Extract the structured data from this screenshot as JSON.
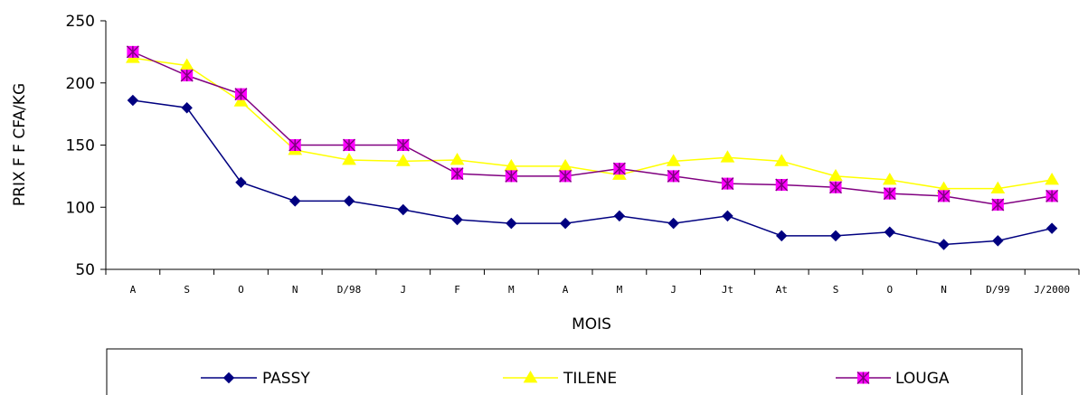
{
  "chart_data": {
    "type": "line",
    "xlabel": "MOIS",
    "ylabel": "PRIX F F CFA/KG",
    "ylim": [
      50,
      250
    ],
    "yticks": [
      "50",
      "100",
      "150",
      "200",
      "250"
    ],
    "categories": [
      "A",
      "S",
      "O",
      "N",
      "D/98",
      "J",
      "F",
      "M",
      "A",
      "M",
      "J",
      "Jt",
      "At",
      "S",
      "O",
      "N",
      "D/99",
      "J/2000"
    ],
    "grid": false,
    "legend_position": "bottom",
    "series": [
      {
        "name": "PASSY",
        "color": "#000080",
        "marker": "diamond",
        "values": [
          186,
          180,
          120,
          105,
          105,
          98,
          90,
          87,
          87,
          93,
          87,
          93,
          77,
          77,
          80,
          70,
          73,
          83
        ]
      },
      {
        "name": "TILENE",
        "color": "#FFFF00",
        "marker": "triangle",
        "values": [
          220,
          214,
          185,
          146,
          138,
          137,
          138,
          133,
          133,
          126,
          137,
          140,
          137,
          125,
          122,
          115,
          115,
          122
        ]
      },
      {
        "name": "LOUGA",
        "color": "#800080",
        "marker": "star",
        "marker_fill": "#FF00FF",
        "values": [
          225,
          206,
          191,
          150,
          150,
          150,
          127,
          125,
          125,
          131,
          125,
          119,
          118,
          116,
          111,
          109,
          102,
          109
        ]
      }
    ]
  }
}
